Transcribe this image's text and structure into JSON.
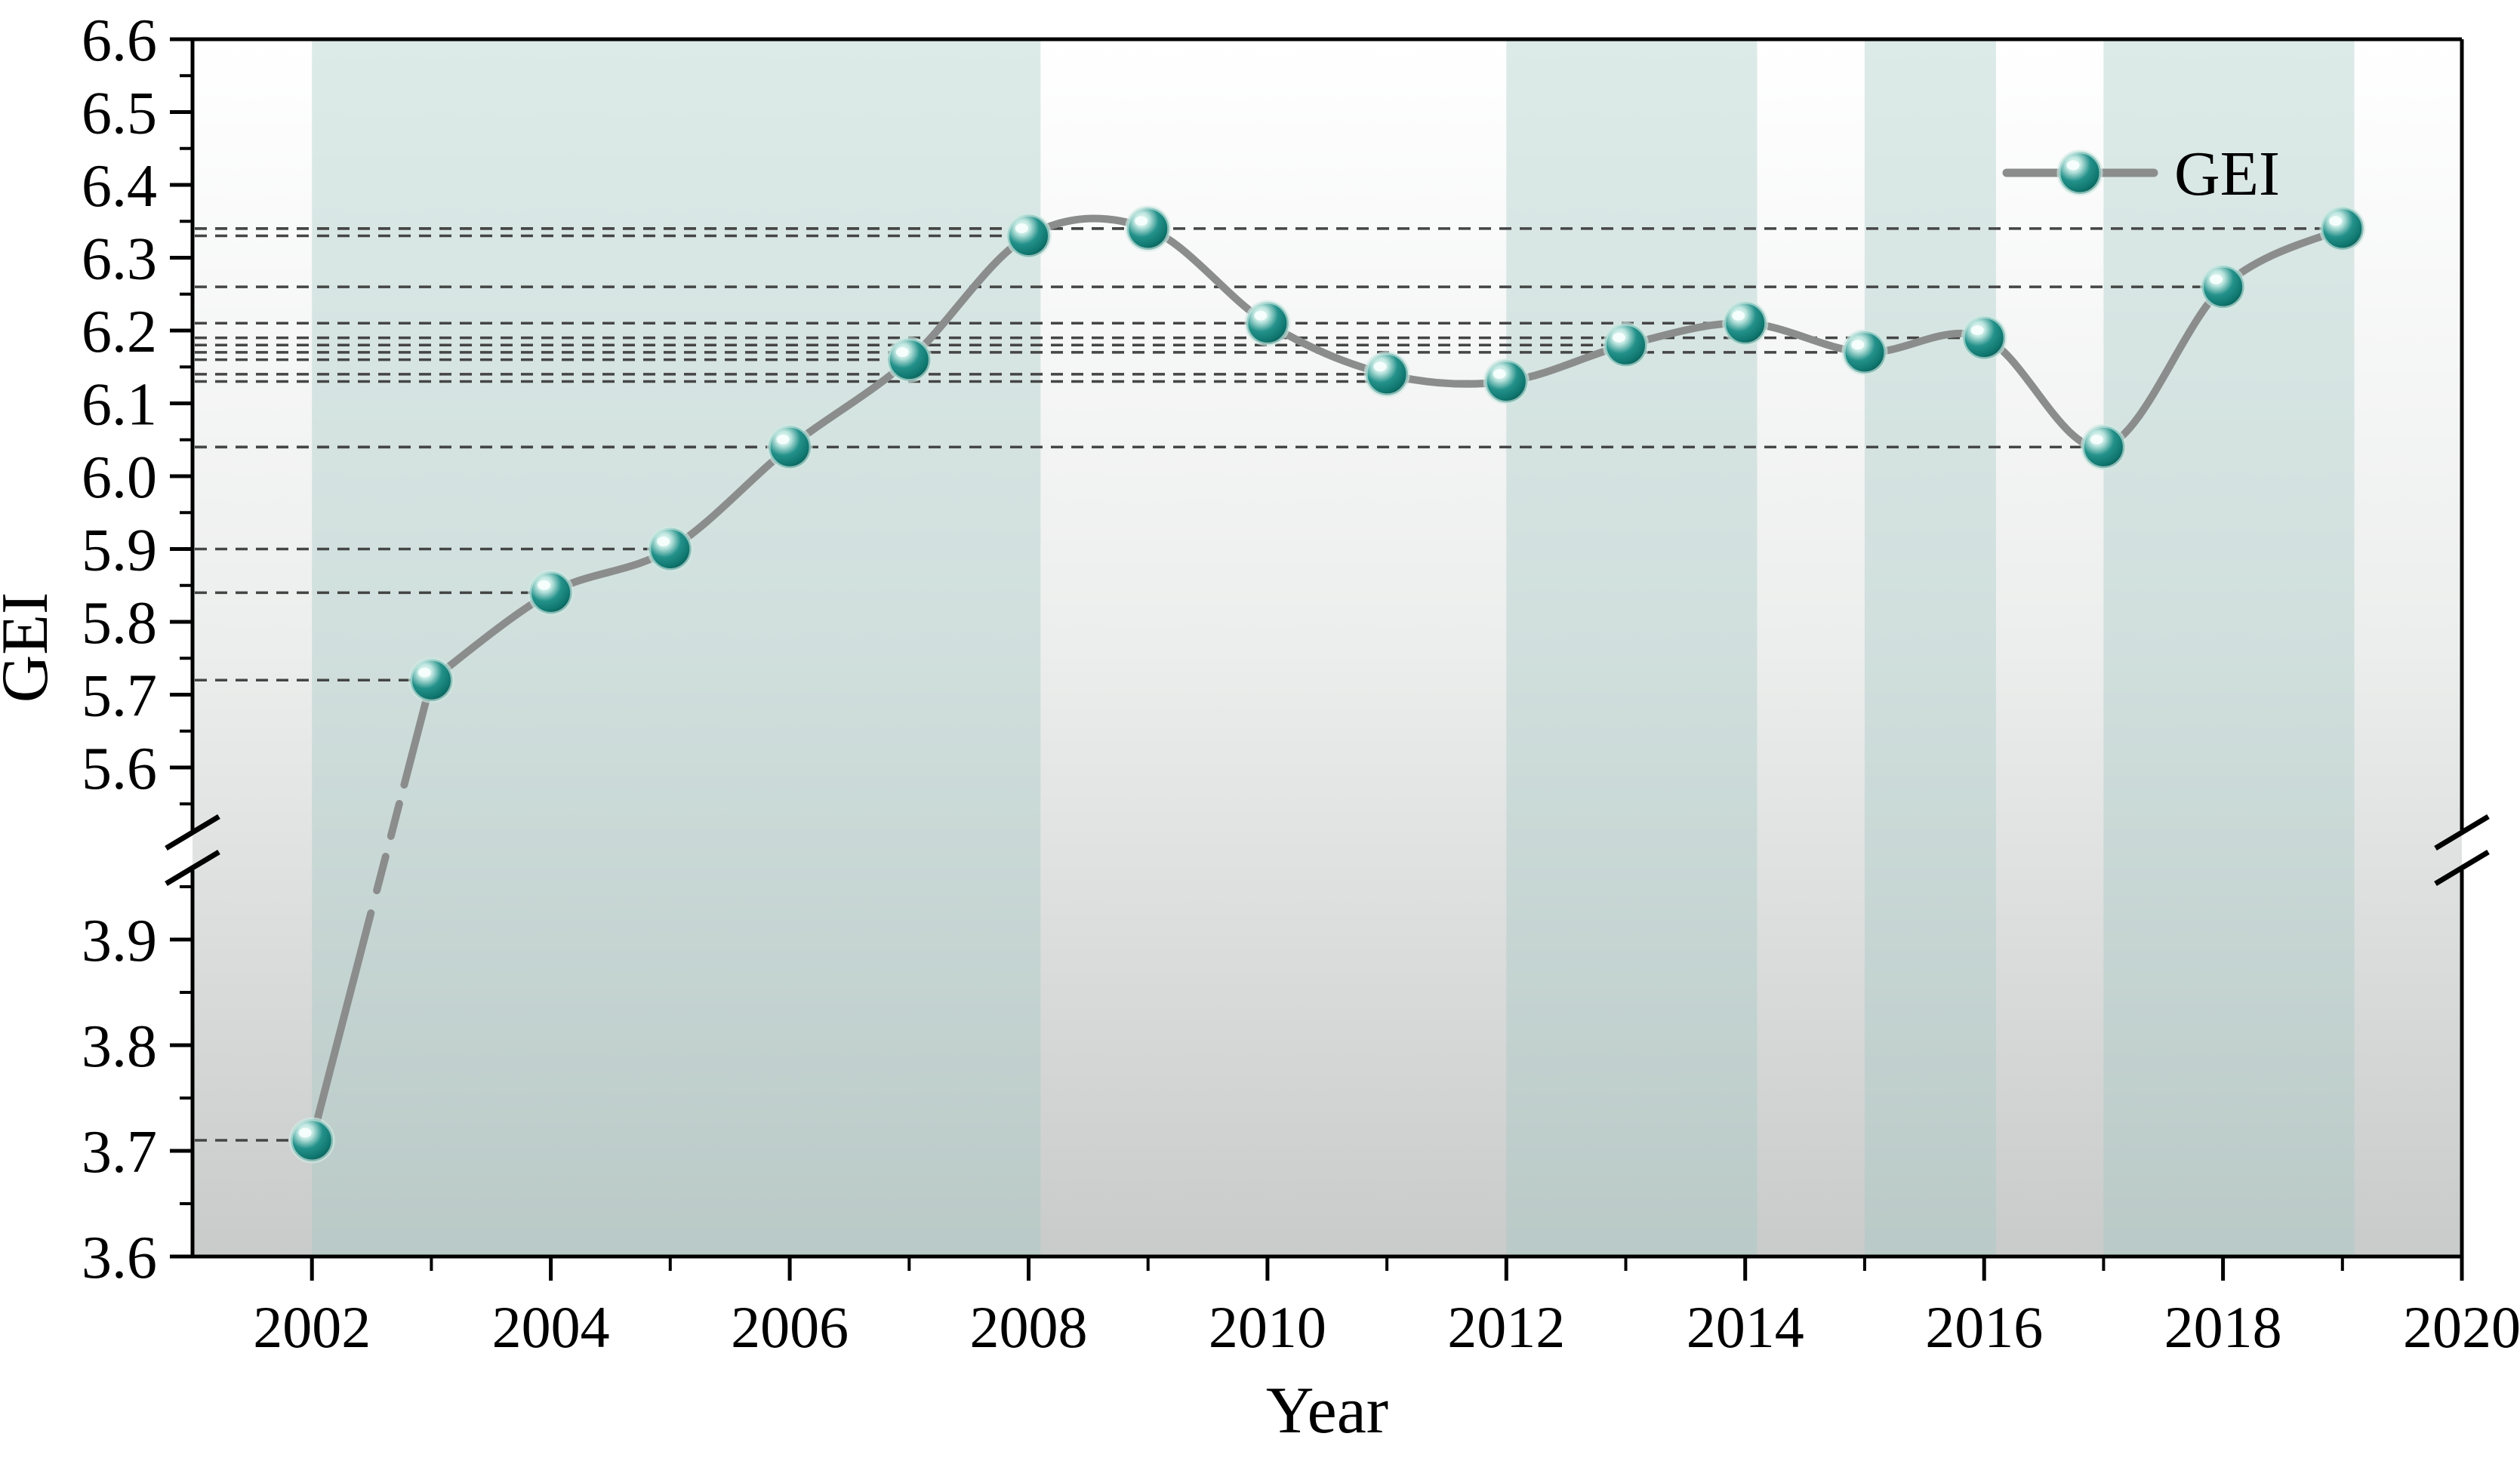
{
  "chart_data": {
    "type": "line",
    "title": "",
    "xlabel": "Year",
    "ylabel": "GEI",
    "legend": [
      "GEI"
    ],
    "series": [
      {
        "name": "GEI",
        "x": [
          2002,
          2003,
          2004,
          2005,
          2006,
          2007,
          2008,
          2009,
          2010,
          2011,
          2012,
          2013,
          2014,
          2015,
          2016,
          2017,
          2018,
          2019
        ],
        "values": [
          3.71,
          5.72,
          5.84,
          5.9,
          6.04,
          6.16,
          6.33,
          6.34,
          6.21,
          6.14,
          6.13,
          6.18,
          6.21,
          6.17,
          6.19,
          6.04,
          6.26,
          6.34
        ]
      }
    ],
    "x_axis": {
      "range": [
        2001,
        2020
      ],
      "tick_values": [
        2002,
        2004,
        2006,
        2008,
        2010,
        2012,
        2014,
        2016,
        2018,
        2020
      ],
      "tick_labels": [
        "2002",
        "2004",
        "2006",
        "2008",
        "2010",
        "2012",
        "2014",
        "2016",
        "2018",
        "2020"
      ],
      "minor_tick_values": [
        2003,
        2005,
        2007,
        2009,
        2011,
        2013,
        2015,
        2017,
        2019
      ]
    },
    "y_axis": {
      "broken": true,
      "upper": {
        "range": [
          5.513,
          6.6
        ],
        "tick_values": [
          6.6,
          6.5,
          6.4,
          6.3,
          6.2,
          6.1,
          6.0,
          5.9,
          5.8,
          5.7,
          5.6
        ],
        "tick_labels": [
          "6.6",
          "6.5",
          "6.4",
          "6.3",
          "6.2",
          "6.1",
          "6.0",
          "5.9",
          "5.8",
          "5.7",
          "5.6"
        ],
        "minor_tick_values": [
          6.55,
          6.45,
          6.35,
          6.25,
          6.15,
          6.05,
          5.95,
          5.85,
          5.75,
          5.65,
          5.55
        ]
      },
      "lower": {
        "range": [
          3.6,
          3.966
        ],
        "tick_values": [
          3.9,
          3.8,
          3.7,
          3.6
        ],
        "tick_labels": [
          "3.9",
          "3.8",
          "3.7",
          "3.6"
        ],
        "minor_tick_values": [
          3.95,
          3.85,
          3.75,
          3.65
        ]
      }
    },
    "highlight_bands": [
      [
        2002,
        2008.1
      ],
      [
        2012,
        2014.1
      ],
      [
        2015,
        2016.1
      ],
      [
        2017,
        2019.1
      ]
    ],
    "leader_lines": true,
    "legend_position": "top-right",
    "grid": false,
    "colors": {
      "marker_teal": "#0f766e",
      "marker_dark": "#08514c",
      "marker_highlight": "#f2fffc",
      "marker_halo": "#cfe9e4",
      "line_gray": "#8b8d8c",
      "leader_dash": "#454545",
      "band_fill": "#a3c8c3",
      "bg_top": "#ffffff",
      "bg_bottom": "#c8cbca",
      "axis": "#000000"
    }
  }
}
